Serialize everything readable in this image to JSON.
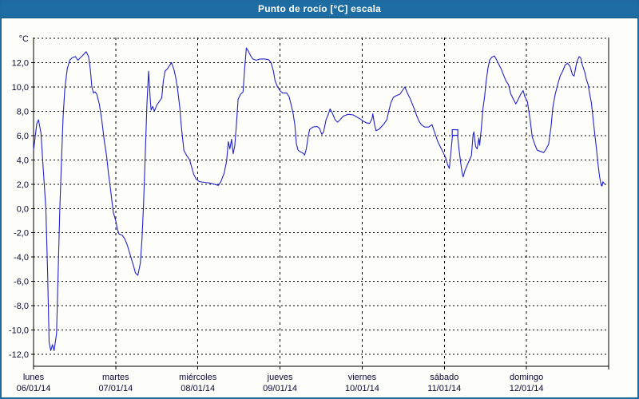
{
  "window": {
    "title": "Punto de rocío [°C] escala"
  },
  "chart_data": {
    "type": "line",
    "title": "Punto de rocío [°C] escala",
    "unit_label": "°C",
    "grid": "dotted",
    "legend": "none",
    "x_axis": {
      "xlim_days": [
        0,
        7
      ],
      "days": [
        {
          "name": "lunes",
          "date": "06/01/14"
        },
        {
          "name": "martes",
          "date": "07/01/14"
        },
        {
          "name": "miércoles",
          "date": "08/01/14"
        },
        {
          "name": "jueves",
          "date": "09/01/14"
        },
        {
          "name": "viernes",
          "date": "10/01/14"
        },
        {
          "name": "sábado",
          "date": "11/01/14"
        },
        {
          "name": "domingo",
          "date": "12/01/14"
        }
      ]
    },
    "y_axis": {
      "ylim": [
        -13,
        14.1
      ],
      "tick_values": [
        12,
        10,
        8,
        6,
        4,
        2,
        0,
        -2,
        -4,
        -6,
        -8,
        -10,
        -12
      ],
      "tick_labels": [
        "12,0",
        "10,0",
        "8,0",
        "6,0",
        "4,0",
        "2,0",
        "0,0",
        "-2,0",
        "-4,0",
        "-6,0",
        "-8,0",
        "-10,0",
        "-12,0"
      ],
      "gridline_values": [
        14,
        12,
        10,
        8,
        6,
        4,
        2,
        0,
        -2,
        -4,
        -6,
        -8,
        -10,
        -12
      ]
    },
    "colors": {
      "line": "#2323cb",
      "grid": "#000000",
      "axis": "#000000",
      "axis_text": "#0a0a32",
      "titlebar_bg": "#1d6da3",
      "titlebar_text": "#ffffff",
      "frame_border": "#1e6a9e",
      "plot_bg": "#fdfdfa"
    },
    "marker_point": [
      5.13,
      6.25
    ],
    "series": [
      {
        "name": "Punto de rocío",
        "color": "#2323cb",
        "points": [
          [
            0.0,
            4.8
          ],
          [
            0.04,
            7.0
          ],
          [
            0.06,
            7.3
          ],
          [
            0.09,
            6.2
          ],
          [
            0.11,
            4.1
          ],
          [
            0.13,
            2.0
          ],
          [
            0.15,
            0.0
          ],
          [
            0.17,
            -5.0
          ],
          [
            0.19,
            -11.0
          ],
          [
            0.21,
            -11.7
          ],
          [
            0.23,
            -11.2
          ],
          [
            0.25,
            -11.7
          ],
          [
            0.28,
            -10.3
          ],
          [
            0.3,
            -5.0
          ],
          [
            0.32,
            0.0
          ],
          [
            0.34,
            4.0
          ],
          [
            0.36,
            7.5
          ],
          [
            0.38,
            9.8
          ],
          [
            0.41,
            11.5
          ],
          [
            0.44,
            12.2
          ],
          [
            0.47,
            12.4
          ],
          [
            0.51,
            12.5
          ],
          [
            0.54,
            12.2
          ],
          [
            0.57,
            12.4
          ],
          [
            0.6,
            12.6
          ],
          [
            0.64,
            12.9
          ],
          [
            0.67,
            12.5
          ],
          [
            0.69,
            11.5
          ],
          [
            0.71,
            10.0
          ],
          [
            0.73,
            9.5
          ],
          [
            0.75,
            9.6
          ],
          [
            0.77,
            9.4
          ],
          [
            0.8,
            8.6
          ],
          [
            0.83,
            7.3
          ],
          [
            0.86,
            5.6
          ],
          [
            0.89,
            4.3
          ],
          [
            0.91,
            3.0
          ],
          [
            0.94,
            1.4
          ],
          [
            0.97,
            -0.3
          ],
          [
            1.0,
            -1.0
          ],
          [
            1.02,
            -1.7
          ],
          [
            1.04,
            -2.1
          ],
          [
            1.08,
            -2.2
          ],
          [
            1.11,
            -2.5
          ],
          [
            1.14,
            -3.0
          ],
          [
            1.18,
            -3.9
          ],
          [
            1.22,
            -4.8
          ],
          [
            1.24,
            -5.3
          ],
          [
            1.27,
            -5.5
          ],
          [
            1.3,
            -4.5
          ],
          [
            1.32,
            -2.5
          ],
          [
            1.34,
            0.5
          ],
          [
            1.36,
            4.5
          ],
          [
            1.38,
            8.5
          ],
          [
            1.4,
            11.3
          ],
          [
            1.42,
            9.0
          ],
          [
            1.43,
            8.1
          ],
          [
            1.45,
            8.4
          ],
          [
            1.47,
            8.0
          ],
          [
            1.5,
            8.5
          ],
          [
            1.53,
            8.8
          ],
          [
            1.56,
            9.1
          ],
          [
            1.58,
            10.5
          ],
          [
            1.6,
            11.3
          ],
          [
            1.63,
            11.5
          ],
          [
            1.66,
            11.8
          ],
          [
            1.68,
            12.0
          ],
          [
            1.71,
            11.4
          ],
          [
            1.73,
            10.8
          ],
          [
            1.75,
            10.0
          ],
          [
            1.78,
            8.3
          ],
          [
            1.8,
            6.7
          ],
          [
            1.83,
            4.8
          ],
          [
            1.86,
            4.4
          ],
          [
            1.9,
            4.0
          ],
          [
            1.92,
            3.5
          ],
          [
            1.95,
            2.8
          ],
          [
            1.98,
            2.4
          ],
          [
            2.02,
            2.2
          ],
          [
            2.08,
            2.15
          ],
          [
            2.14,
            2.1
          ],
          [
            2.2,
            2.0
          ],
          [
            2.25,
            1.9
          ],
          [
            2.28,
            2.2
          ],
          [
            2.32,
            2.9
          ],
          [
            2.35,
            3.9
          ],
          [
            2.37,
            5.5
          ],
          [
            2.39,
            4.9
          ],
          [
            2.41,
            5.7
          ],
          [
            2.43,
            4.5
          ],
          [
            2.45,
            5.2
          ],
          [
            2.47,
            7.0
          ],
          [
            2.49,
            9.0
          ],
          [
            2.52,
            9.4
          ],
          [
            2.55,
            9.6
          ],
          [
            2.57,
            11.5
          ],
          [
            2.59,
            13.2
          ],
          [
            2.61,
            13.0
          ],
          [
            2.64,
            12.6
          ],
          [
            2.67,
            12.3
          ],
          [
            2.71,
            12.2
          ],
          [
            2.76,
            12.3
          ],
          [
            2.81,
            12.3
          ],
          [
            2.86,
            12.25
          ],
          [
            2.89,
            12.0
          ],
          [
            2.92,
            11.3
          ],
          [
            2.94,
            10.5
          ],
          [
            2.97,
            10.0
          ],
          [
            3.0,
            9.7
          ],
          [
            3.03,
            9.5
          ],
          [
            3.08,
            9.5
          ],
          [
            3.11,
            9.2
          ],
          [
            3.14,
            8.4
          ],
          [
            3.16,
            7.8
          ],
          [
            3.18,
            6.9
          ],
          [
            3.2,
            5.3
          ],
          [
            3.22,
            4.8
          ],
          [
            3.25,
            4.65
          ],
          [
            3.28,
            4.55
          ],
          [
            3.3,
            4.4
          ],
          [
            3.32,
            4.9
          ],
          [
            3.34,
            5.8
          ],
          [
            3.36,
            6.5
          ],
          [
            3.4,
            6.7
          ],
          [
            3.45,
            6.75
          ],
          [
            3.48,
            6.6
          ],
          [
            3.51,
            6.1
          ],
          [
            3.53,
            6.3
          ],
          [
            3.56,
            7.3
          ],
          [
            3.59,
            7.8
          ],
          [
            3.61,
            8.2
          ],
          [
            3.64,
            7.8
          ],
          [
            3.67,
            7.3
          ],
          [
            3.7,
            7.1
          ],
          [
            3.73,
            7.3
          ],
          [
            3.77,
            7.6
          ],
          [
            3.83,
            7.75
          ],
          [
            3.89,
            7.7
          ],
          [
            3.94,
            7.5
          ],
          [
            3.98,
            7.35
          ],
          [
            4.01,
            7.2
          ],
          [
            4.05,
            7.05
          ],
          [
            4.09,
            7.0
          ],
          [
            4.12,
            7.4
          ],
          [
            4.13,
            7.8
          ],
          [
            4.15,
            6.9
          ],
          [
            4.17,
            6.4
          ],
          [
            4.2,
            6.5
          ],
          [
            4.23,
            6.7
          ],
          [
            4.27,
            7.0
          ],
          [
            4.3,
            7.3
          ],
          [
            4.32,
            7.9
          ],
          [
            4.35,
            8.7
          ],
          [
            4.38,
            9.15
          ],
          [
            4.42,
            9.3
          ],
          [
            4.46,
            9.4
          ],
          [
            4.49,
            9.7
          ],
          [
            4.52,
            10.0
          ],
          [
            4.55,
            9.5
          ],
          [
            4.58,
            9.1
          ],
          [
            4.61,
            8.6
          ],
          [
            4.64,
            8.1
          ],
          [
            4.66,
            7.7
          ],
          [
            4.69,
            7.2
          ],
          [
            4.72,
            6.9
          ],
          [
            4.76,
            6.7
          ],
          [
            4.81,
            6.7
          ],
          [
            4.85,
            6.9
          ],
          [
            4.87,
            6.5
          ],
          [
            4.89,
            6.1
          ],
          [
            4.92,
            5.5
          ],
          [
            4.95,
            5.1
          ],
          [
            4.98,
            4.7
          ],
          [
            5.0,
            4.4
          ],
          [
            5.02,
            4.1
          ],
          [
            5.04,
            3.6
          ],
          [
            5.06,
            3.3
          ],
          [
            5.08,
            4.6
          ],
          [
            5.1,
            6.1
          ],
          [
            5.13,
            6.25
          ],
          [
            5.16,
            6.1
          ],
          [
            5.18,
            4.8
          ],
          [
            5.2,
            3.7
          ],
          [
            5.22,
            2.8
          ],
          [
            5.23,
            2.6
          ],
          [
            5.25,
            3.1
          ],
          [
            5.28,
            3.6
          ],
          [
            5.31,
            4.05
          ],
          [
            5.33,
            4.35
          ],
          [
            5.35,
            6.1
          ],
          [
            5.36,
            6.3
          ],
          [
            5.38,
            5.1
          ],
          [
            5.4,
            4.9
          ],
          [
            5.42,
            5.8
          ],
          [
            5.43,
            5.2
          ],
          [
            5.45,
            6.6
          ],
          [
            5.47,
            8.2
          ],
          [
            5.49,
            9.2
          ],
          [
            5.51,
            10.5
          ],
          [
            5.53,
            11.5
          ],
          [
            5.55,
            12.2
          ],
          [
            5.58,
            12.45
          ],
          [
            5.61,
            12.55
          ],
          [
            5.63,
            12.3
          ],
          [
            5.66,
            11.9
          ],
          [
            5.69,
            11.5
          ],
          [
            5.72,
            11.0
          ],
          [
            5.75,
            10.5
          ],
          [
            5.78,
            10.2
          ],
          [
            5.81,
            9.4
          ],
          [
            5.84,
            9.0
          ],
          [
            5.87,
            8.6
          ],
          [
            5.9,
            9.0
          ],
          [
            5.93,
            9.4
          ],
          [
            5.96,
            9.7
          ],
          [
            5.98,
            9.2
          ],
          [
            6.01,
            8.8
          ],
          [
            6.04,
            7.5
          ],
          [
            6.07,
            5.9
          ],
          [
            6.1,
            5.3
          ],
          [
            6.13,
            4.8
          ],
          [
            6.17,
            4.7
          ],
          [
            6.21,
            4.6
          ],
          [
            6.24,
            4.9
          ],
          [
            6.27,
            5.3
          ],
          [
            6.3,
            6.8
          ],
          [
            6.32,
            8.3
          ],
          [
            6.35,
            9.4
          ],
          [
            6.38,
            10.2
          ],
          [
            6.41,
            10.9
          ],
          [
            6.44,
            11.3
          ],
          [
            6.47,
            11.8
          ],
          [
            6.5,
            11.95
          ],
          [
            6.53,
            11.7
          ],
          [
            6.56,
            11.0
          ],
          [
            6.58,
            10.9
          ],
          [
            6.61,
            12.0
          ],
          [
            6.64,
            12.5
          ],
          [
            6.66,
            12.4
          ],
          [
            6.68,
            11.8
          ],
          [
            6.71,
            11.2
          ],
          [
            6.73,
            10.6
          ],
          [
            6.75,
            10.2
          ],
          [
            6.77,
            9.4
          ],
          [
            6.79,
            8.7
          ],
          [
            6.81,
            7.4
          ],
          [
            6.83,
            6.2
          ],
          [
            6.85,
            5.0
          ],
          [
            6.87,
            3.7
          ],
          [
            6.89,
            2.6
          ],
          [
            6.91,
            1.9
          ],
          [
            6.92,
            1.85
          ],
          [
            6.93,
            2.2
          ],
          [
            6.95,
            2.0
          ]
        ]
      }
    ]
  }
}
